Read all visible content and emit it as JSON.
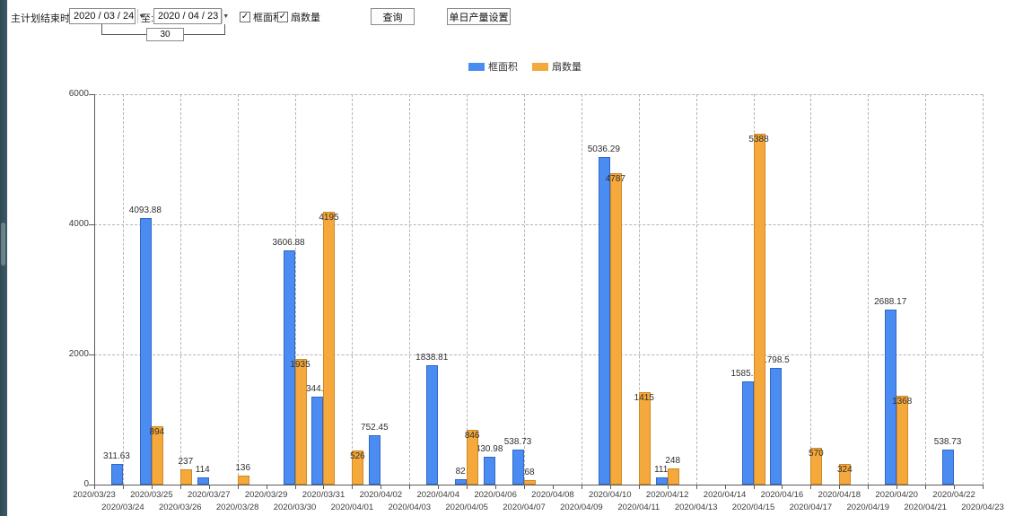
{
  "toolbar": {
    "label_plan_end": "主计划结束时间:",
    "date_from": "2020 / 03 / 24",
    "label_to": "至:",
    "date_to": "2020 / 04 / 23",
    "interval_days": "30",
    "checkbox_frame": {
      "label": "框面积",
      "checked": true
    },
    "checkbox_fan": {
      "label": "扇数量",
      "checked": true
    },
    "query_button": "查询",
    "daily_output_button": "单日产量设置"
  },
  "icons": {
    "dropdown_arrow": "▼",
    "check": "✓"
  },
  "legend": [
    {
      "label": "框面积",
      "color": "#4a8cf2"
    },
    {
      "label": "扇数量",
      "color": "#f5a83b"
    }
  ],
  "chart_data": {
    "type": "bar",
    "title": "",
    "xlabel": "",
    "ylabel": "",
    "ylim": [
      0,
      6000
    ],
    "yticks": [
      0,
      2000,
      4000,
      6000
    ],
    "grid": true,
    "legend_position": "top",
    "categories": [
      "2020/03/23",
      "2020/03/24",
      "2020/03/25",
      "2020/03/26",
      "2020/03/27",
      "2020/03/28",
      "2020/03/29",
      "2020/03/30",
      "2020/03/31",
      "2020/04/01",
      "2020/04/02",
      "2020/04/03",
      "2020/04/04",
      "2020/04/05",
      "2020/04/06",
      "2020/04/07",
      "2020/04/08",
      "2020/04/09",
      "2020/04/10",
      "2020/04/11",
      "2020/04/12",
      "2020/04/13",
      "2020/04/14",
      "2020/04/15",
      "2020/04/16",
      "2020/04/17",
      "2020/04/18",
      "2020/04/19",
      "2020/04/20",
      "2020/04/21",
      "2020/04/22",
      "2020/04/23"
    ],
    "series": [
      {
        "name": "框面积",
        "color": "#4a8cf2",
        "edge": "#3567c4",
        "values": [
          null,
          311.63,
          4093.88,
          null,
          114,
          null,
          null,
          3606.88,
          1344.95,
          null,
          752.45,
          null,
          1838.81,
          82,
          430.98,
          538.73,
          null,
          null,
          5036.29,
          null,
          111,
          null,
          null,
          1585.96,
          1798.5,
          null,
          null,
          null,
          2688.17,
          null,
          538.73,
          null
        ]
      },
      {
        "name": "扇数量",
        "color": "#f5a83b",
        "edge": "#cf8824",
        "values": [
          null,
          null,
          894,
          237,
          null,
          136,
          null,
          1935,
          4195,
          526,
          null,
          null,
          null,
          846,
          null,
          68,
          null,
          null,
          4787,
          1415,
          248,
          null,
          null,
          5388,
          null,
          570,
          324,
          null,
          1368,
          null,
          null,
          null
        ]
      }
    ]
  }
}
